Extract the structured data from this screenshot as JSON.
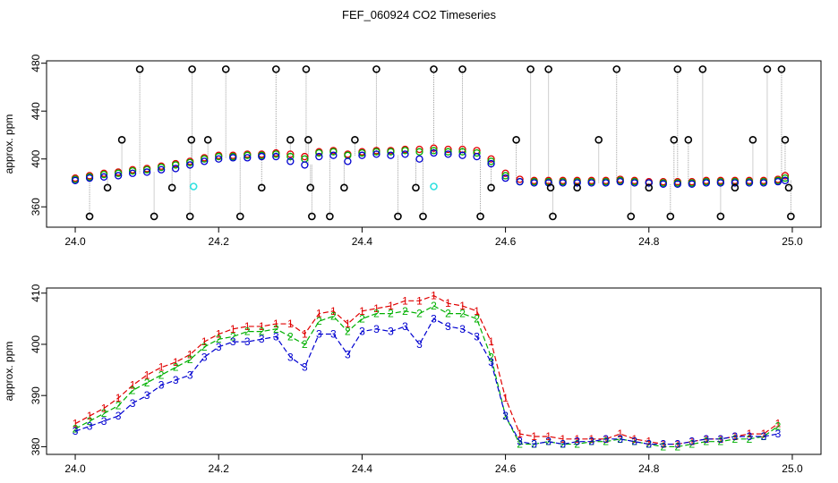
{
  "title": "FEF_060924  CO2 Timeseries",
  "colors": {
    "s1": "#e00000",
    "s2": "#00b000",
    "s3": "#0000d0",
    "outlier": "#000000",
    "flagged": "#30e0e0",
    "spike": "#a0a0a0"
  },
  "chart_data": [
    {
      "type": "scatter",
      "title": "",
      "xlabel": "",
      "ylabel": "approx. ppm",
      "xlim": [
        23.96,
        25.04
      ],
      "ylim": [
        343,
        482
      ],
      "xticks": [
        "24.0",
        "24.2",
        "24.4",
        "24.6",
        "24.8",
        "25.0"
      ],
      "yticks": [
        "360",
        "400",
        "440",
        "480"
      ],
      "grid": false,
      "series": [
        {
          "key": "s1",
          "x": [
            24.0,
            24.02,
            24.04,
            24.06,
            24.08,
            24.1,
            24.12,
            24.14,
            24.16,
            24.18,
            24.2,
            24.22,
            24.24,
            24.26,
            24.28,
            24.3,
            24.32,
            24.34,
            24.36,
            24.38,
            24.4,
            24.42,
            24.44,
            24.46,
            24.48,
            24.5,
            24.52,
            24.54,
            24.56,
            24.58,
            24.6,
            24.62,
            24.64,
            24.66,
            24.68,
            24.7,
            24.72,
            24.74,
            24.76,
            24.78,
            24.8,
            24.82,
            24.84,
            24.86,
            24.88,
            24.9,
            24.92,
            24.94,
            24.96,
            24.98,
            24.99
          ],
          "y": [
            384,
            386,
            388,
            389,
            391,
            392,
            394,
            396,
            398,
            401,
            403,
            403,
            404,
            404,
            405,
            404,
            402,
            406,
            407,
            404,
            406,
            407,
            407,
            408,
            408,
            409,
            408,
            408,
            407,
            400,
            388,
            383,
            382,
            382,
            382,
            382,
            382,
            382,
            383,
            382,
            381,
            381,
            381,
            381,
            382,
            382,
            382,
            382,
            382,
            383,
            386
          ]
        },
        {
          "key": "s2",
          "x": [
            24.0,
            24.02,
            24.04,
            24.06,
            24.08,
            24.1,
            24.12,
            24.14,
            24.16,
            24.18,
            24.2,
            24.22,
            24.24,
            24.26,
            24.28,
            24.3,
            24.32,
            24.34,
            24.36,
            24.38,
            24.4,
            24.42,
            24.44,
            24.46,
            24.48,
            24.5,
            24.52,
            24.54,
            24.56,
            24.58,
            24.6,
            24.62,
            24.64,
            24.66,
            24.68,
            24.7,
            24.72,
            24.74,
            24.76,
            24.78,
            24.8,
            24.82,
            24.84,
            24.86,
            24.88,
            24.9,
            24.92,
            24.94,
            24.96,
            24.98,
            24.99
          ],
          "y": [
            383,
            385,
            387,
            388,
            390,
            391,
            393,
            395,
            397,
            400,
            402,
            402,
            403,
            403,
            404,
            402,
            400,
            405,
            406,
            403,
            405,
            406,
            406,
            407,
            406,
            407,
            406,
            406,
            405,
            398,
            386,
            381,
            381,
            381,
            381,
            381,
            381,
            381,
            382,
            381,
            380,
            380,
            380,
            380,
            381,
            381,
            381,
            381,
            381,
            382,
            384
          ]
        },
        {
          "key": "s3",
          "x": [
            24.0,
            24.02,
            24.04,
            24.06,
            24.08,
            24.1,
            24.12,
            24.14,
            24.16,
            24.18,
            24.2,
            24.22,
            24.24,
            24.26,
            24.28,
            24.3,
            24.32,
            24.34,
            24.36,
            24.38,
            24.4,
            24.42,
            24.44,
            24.46,
            24.48,
            24.5,
            24.52,
            24.54,
            24.56,
            24.58,
            24.6,
            24.62,
            24.64,
            24.66,
            24.68,
            24.7,
            24.72,
            24.74,
            24.76,
            24.78,
            24.8,
            24.82,
            24.84,
            24.86,
            24.88,
            24.9,
            24.92,
            24.94,
            24.96,
            24.98,
            24.99
          ],
          "y": [
            382,
            384,
            385,
            386,
            388,
            389,
            391,
            392,
            395,
            398,
            400,
            401,
            401,
            402,
            402,
            398,
            395,
            402,
            403,
            398,
            403,
            404,
            403,
            404,
            400,
            405,
            404,
            403,
            402,
            396,
            384,
            381,
            380,
            380,
            380,
            380,
            380,
            380,
            381,
            380,
            380,
            379,
            379,
            379,
            380,
            380,
            380,
            380,
            380,
            381,
            382
          ]
        },
        {
          "key": "outlier",
          "x": [
            24.02,
            24.045,
            24.065,
            24.09,
            24.11,
            24.135,
            24.16,
            24.162,
            24.163,
            24.185,
            24.21,
            24.23,
            24.26,
            24.28,
            24.3,
            24.322,
            24.325,
            24.328,
            24.33,
            24.355,
            24.375,
            24.39,
            24.42,
            24.45,
            24.475,
            24.485,
            24.5,
            24.54,
            24.565,
            24.58,
            24.615,
            24.635,
            24.66,
            24.663,
            24.666,
            24.7,
            24.73,
            24.755,
            24.775,
            24.8,
            24.83,
            24.835,
            24.84,
            24.855,
            24.875,
            24.9,
            24.92,
            24.945,
            24.965,
            24.985,
            24.99,
            24.995,
            24.998
          ],
          "y": [
            352,
            376,
            416,
            475,
            352,
            376,
            352,
            416,
            475,
            416,
            475,
            352,
            376,
            475,
            416,
            475,
            416,
            376,
            352,
            352,
            376,
            416,
            475,
            352,
            376,
            352,
            475,
            475,
            352,
            376,
            416,
            475,
            475,
            376,
            352,
            376,
            416,
            475,
            352,
            376,
            352,
            416,
            475,
            416,
            475,
            352,
            376,
            416,
            475,
            475,
            416,
            376,
            352
          ]
        },
        {
          "key": "flagged",
          "x": [
            24.165,
            24.5
          ],
          "y": [
            377,
            377
          ]
        }
      ]
    },
    {
      "type": "line",
      "title": "",
      "xlabel": "",
      "ylabel": "approx. ppm",
      "xlim": [
        23.96,
        25.04
      ],
      "ylim": [
        378.5,
        411
      ],
      "xticks": [
        "24.0",
        "24.2",
        "24.4",
        "24.6",
        "24.8",
        "25.0"
      ],
      "yticks": [
        "380",
        "390",
        "400",
        "410"
      ],
      "grid": false,
      "series": [
        {
          "key": "s1",
          "label": "1",
          "x": [
            24.0,
            24.02,
            24.04,
            24.06,
            24.08,
            24.1,
            24.12,
            24.14,
            24.16,
            24.18,
            24.2,
            24.22,
            24.24,
            24.26,
            24.28,
            24.3,
            24.32,
            24.34,
            24.36,
            24.38,
            24.4,
            24.42,
            24.44,
            24.46,
            24.48,
            24.5,
            24.52,
            24.54,
            24.56,
            24.58,
            24.6,
            24.62,
            24.64,
            24.66,
            24.68,
            24.7,
            24.72,
            24.74,
            24.76,
            24.78,
            24.8,
            24.82,
            24.84,
            24.86,
            24.88,
            24.9,
            24.92,
            24.94,
            24.96,
            24.98
          ],
          "y": [
            384.5,
            386,
            387.5,
            389.5,
            392,
            394,
            395.5,
            396.5,
            398,
            400.5,
            402,
            403,
            403.5,
            403.5,
            404,
            404,
            402,
            406,
            406.5,
            404,
            406.5,
            407,
            407.5,
            408.5,
            408.5,
            409.5,
            408,
            407.5,
            406.5,
            400.5,
            389.5,
            382.5,
            382,
            382,
            381.5,
            381.5,
            381.5,
            381.5,
            382.5,
            381.5,
            381,
            380.5,
            380.5,
            381,
            381.5,
            381.5,
            382,
            382.5,
            382.5,
            384.5
          ]
        },
        {
          "key": "s2",
          "label": "2",
          "x": [
            24.0,
            24.02,
            24.04,
            24.06,
            24.08,
            24.1,
            24.12,
            24.14,
            24.16,
            24.18,
            24.2,
            24.22,
            24.24,
            24.26,
            24.28,
            24.3,
            24.32,
            24.34,
            24.36,
            24.38,
            24.4,
            24.42,
            24.44,
            24.46,
            24.48,
            24.5,
            24.52,
            24.54,
            24.56,
            24.58,
            24.6,
            24.62,
            24.64,
            24.66,
            24.68,
            24.7,
            24.72,
            24.74,
            24.76,
            24.78,
            24.8,
            24.82,
            24.84,
            24.86,
            24.88,
            24.9,
            24.92,
            24.94,
            24.96,
            24.98
          ],
          "y": [
            383.5,
            385,
            386.5,
            388,
            391,
            392.5,
            394,
            395.5,
            397,
            399.5,
            401,
            401.5,
            402.5,
            402.5,
            403,
            401.5,
            400,
            404.5,
            405.5,
            402.5,
            405,
            406,
            406,
            406.5,
            406,
            407.5,
            406,
            406,
            405,
            397.5,
            386,
            380.5,
            380.5,
            381,
            380.5,
            380.5,
            381,
            381,
            381.5,
            381,
            380.5,
            380,
            380,
            380.5,
            381,
            381,
            381.5,
            381.5,
            382,
            384
          ]
        },
        {
          "key": "s3",
          "label": "3",
          "x": [
            24.0,
            24.02,
            24.04,
            24.06,
            24.08,
            24.1,
            24.12,
            24.14,
            24.16,
            24.18,
            24.2,
            24.22,
            24.24,
            24.26,
            24.28,
            24.3,
            24.32,
            24.34,
            24.36,
            24.38,
            24.4,
            24.42,
            24.44,
            24.46,
            24.48,
            24.5,
            24.52,
            24.54,
            24.56,
            24.58,
            24.6,
            24.62,
            24.64,
            24.66,
            24.68,
            24.7,
            24.72,
            24.74,
            24.76,
            24.78,
            24.8,
            24.82,
            24.84,
            24.86,
            24.88,
            24.9,
            24.92,
            24.94,
            24.96,
            24.98
          ],
          "y": [
            383,
            384,
            385,
            386,
            388.5,
            390,
            392,
            393,
            394,
            397.5,
            399.5,
            400.5,
            400.5,
            401,
            401.5,
            397.5,
            395.5,
            402,
            402,
            398,
            402.5,
            403,
            402.5,
            403.5,
            400,
            405,
            403.5,
            403,
            401.5,
            396.5,
            386,
            381,
            380.5,
            381,
            380.5,
            381,
            381,
            381.5,
            381.5,
            381,
            380.5,
            380.5,
            380.5,
            381,
            381.5,
            381.5,
            382,
            382,
            382,
            382.5
          ]
        }
      ]
    }
  ]
}
